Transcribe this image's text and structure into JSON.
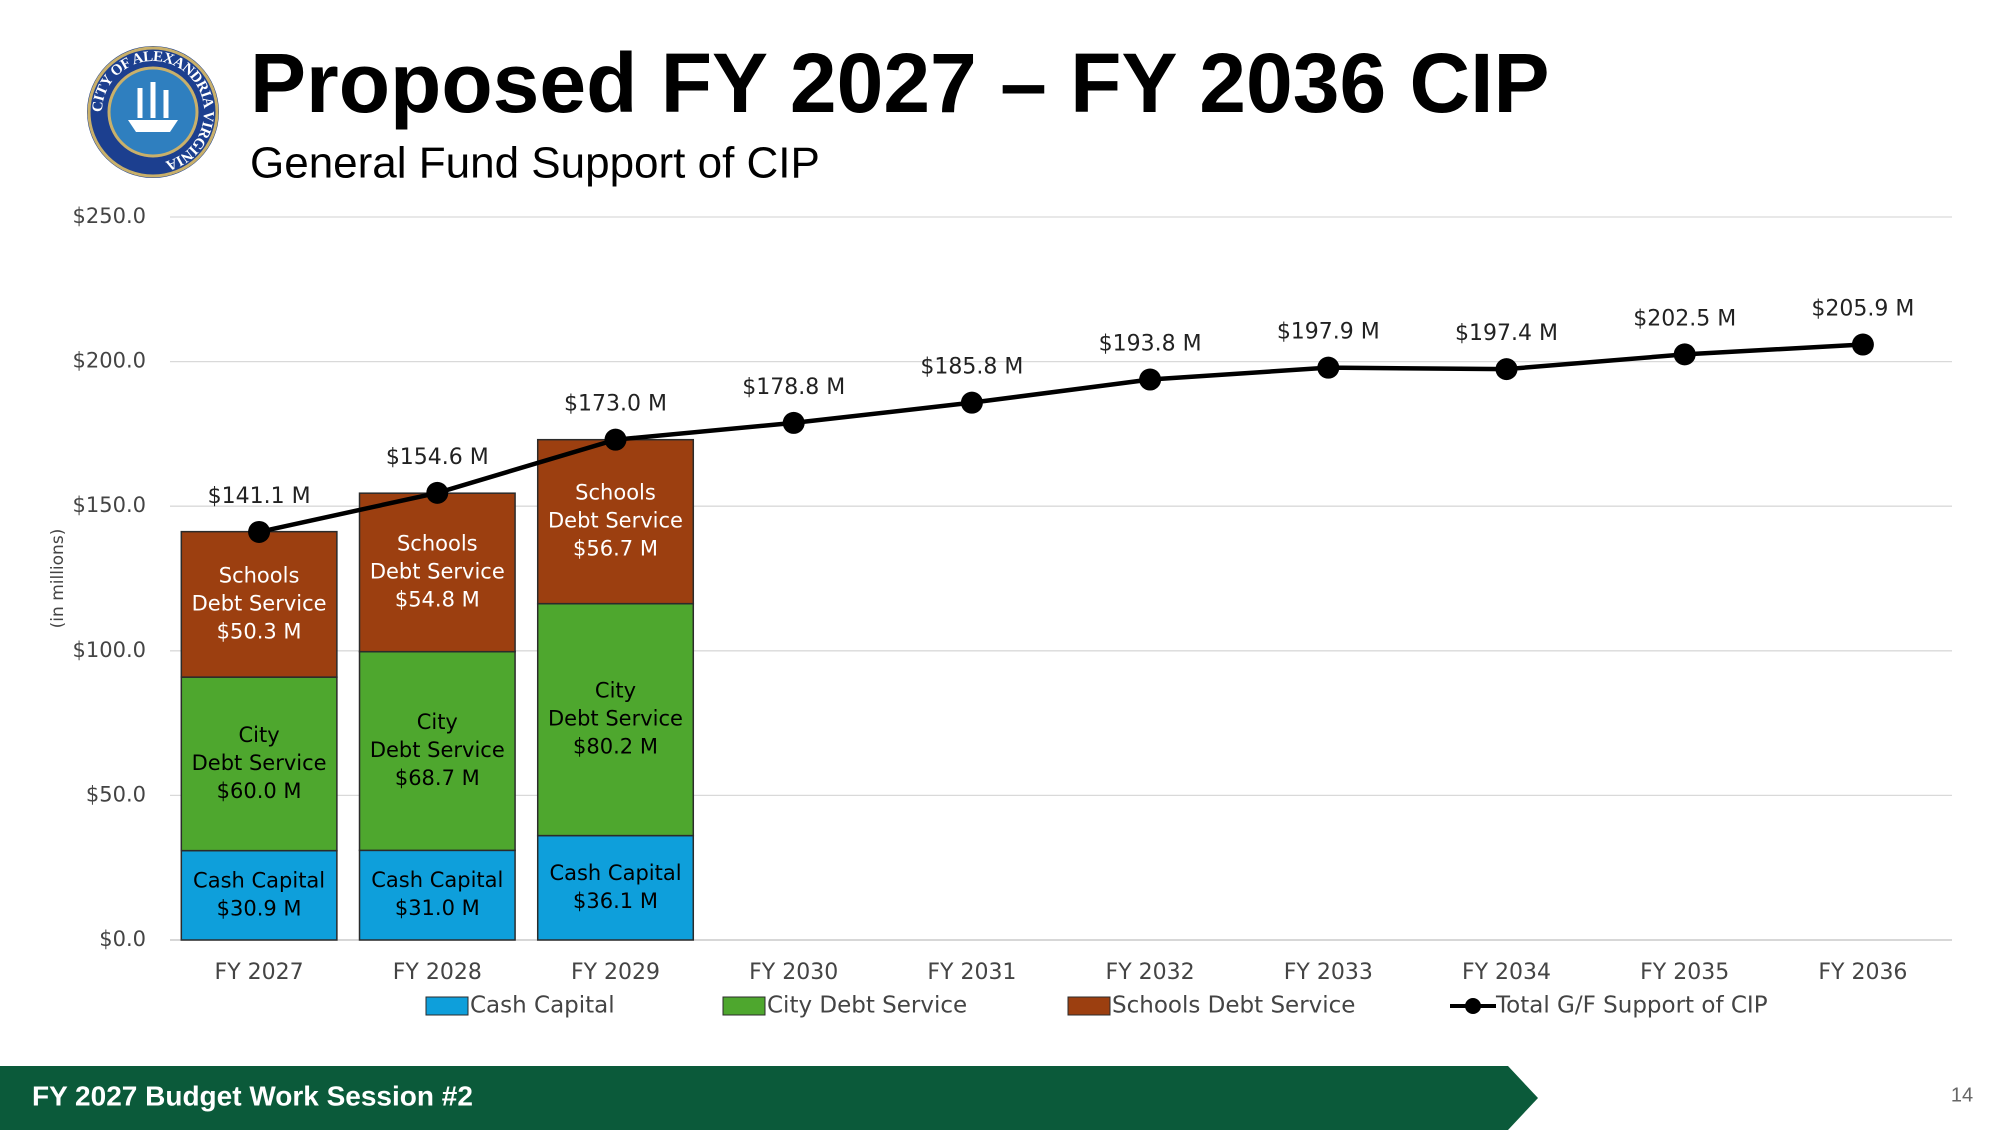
{
  "header": {
    "title": "Proposed FY 2027 – FY 2036 CIP",
    "subtitle": "General Fund Support of CIP",
    "logo_text": "CITY OF ALEXANDRIA VIRGINIA"
  },
  "footer": {
    "text": "FY 2027 Budget Work Session #2",
    "page": "14"
  },
  "chart_data": {
    "type": "bar",
    "stacked": true,
    "ylabel": "(in millions)",
    "categories": [
      "FY 2027",
      "FY 2028",
      "FY 2029",
      "FY 2030",
      "FY 2031",
      "FY 2032",
      "FY 2033",
      "FY 2034",
      "FY 2035",
      "FY 2036"
    ],
    "series": [
      {
        "name": "Cash Capital",
        "color": "#0e9fdb",
        "label_lines": [
          "Cash Capital"
        ],
        "values": [
          30.9,
          31.0,
          36.1,
          null,
          null,
          null,
          null,
          null,
          null,
          null
        ],
        "value_labels": [
          "$30.9 M",
          "$31.0 M",
          "$36.1 M",
          null,
          null,
          null,
          null,
          null,
          null,
          null
        ]
      },
      {
        "name": "City Debt Service",
        "color": "#4ea72e",
        "label_lines": [
          "City",
          "Debt Service"
        ],
        "values": [
          60.0,
          68.7,
          80.2,
          null,
          null,
          null,
          null,
          null,
          null,
          null
        ],
        "value_labels": [
          "$60.0 M",
          "$68.7 M",
          "$80.2 M",
          null,
          null,
          null,
          null,
          null,
          null,
          null
        ]
      },
      {
        "name": "Schools Debt Service",
        "color": "#9c3f10",
        "label_lines": [
          "Schools",
          "Debt Service"
        ],
        "values": [
          50.3,
          54.8,
          56.7,
          null,
          null,
          null,
          null,
          null,
          null,
          null
        ],
        "value_labels": [
          "$50.3 M",
          "$54.8 M",
          "$56.7 M",
          null,
          null,
          null,
          null,
          null,
          null,
          null
        ]
      },
      {
        "name": "Total G/F Support of CIP",
        "type": "line",
        "color": "#000000",
        "values": [
          141.1,
          154.6,
          173.0,
          178.8,
          185.8,
          193.8,
          197.9,
          197.4,
          202.5,
          205.9
        ],
        "value_labels": [
          "$141.1 M",
          "$154.6 M",
          "$173.0 M",
          "$178.8 M",
          "$185.8 M",
          "$193.8 M",
          "$197.9 M",
          "$197.4 M",
          "$202.5 M",
          "$205.9 M"
        ]
      }
    ],
    "ylim": [
      0,
      250
    ],
    "yticks": [
      {
        "value": 0,
        "label": "$0.0"
      },
      {
        "value": 50,
        "label": "$50.0"
      },
      {
        "value": 100,
        "label": "$100.0"
      },
      {
        "value": 150,
        "label": "$150.0"
      },
      {
        "value": 200,
        "label": "$200.0"
      },
      {
        "value": 250,
        "label": "$250.0"
      }
    ],
    "grid": true,
    "legend": "bottom"
  }
}
